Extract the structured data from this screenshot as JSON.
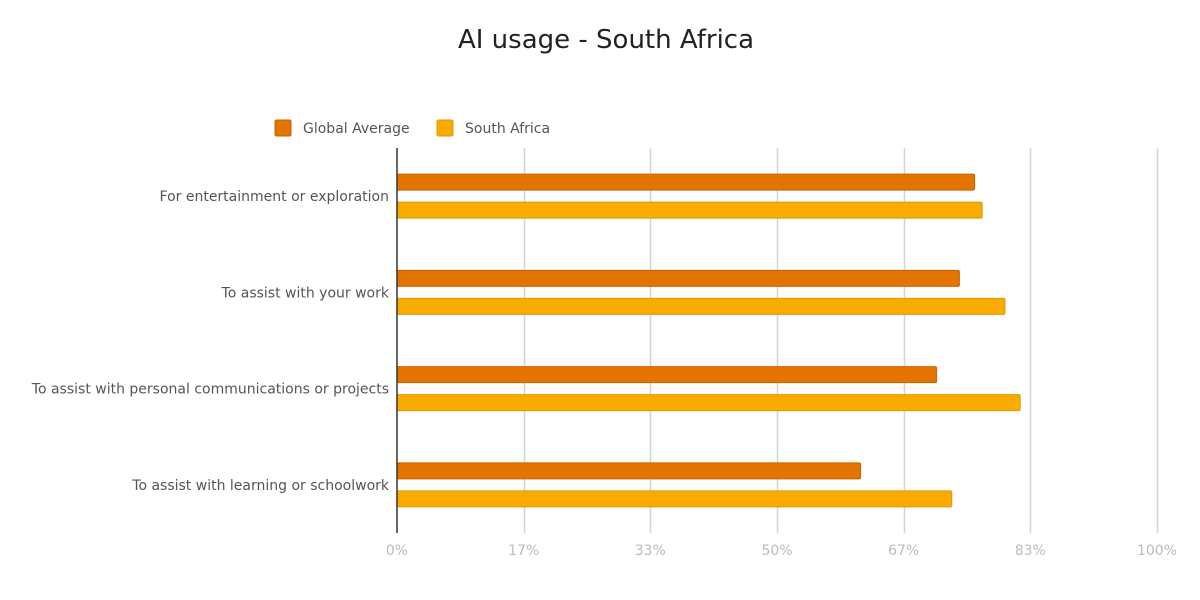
{
  "chart_data": {
    "type": "bar",
    "orientation": "horizontal",
    "title": "AI usage - South Africa",
    "categories": [
      "For entertainment or exploration",
      "To assist with your work",
      "To assist with personal communications or projects",
      "To assist with learning or schoolwork"
    ],
    "series": [
      {
        "name": "Global Average",
        "color": "#E37400",
        "values": [
          76,
          74,
          71,
          61
        ]
      },
      {
        "name": "South Africa",
        "color": "#F9AB00",
        "values": [
          77,
          80,
          82,
          73
        ]
      }
    ],
    "xlim": [
      0,
      100
    ],
    "x_ticks": [
      "0%",
      "17%",
      "33%",
      "50%",
      "67%",
      "83%",
      "100%"
    ],
    "x_tick_values": [
      0,
      16.67,
      33.33,
      50,
      66.67,
      83.33,
      100
    ],
    "grid": true,
    "legend_position": "top-left"
  }
}
